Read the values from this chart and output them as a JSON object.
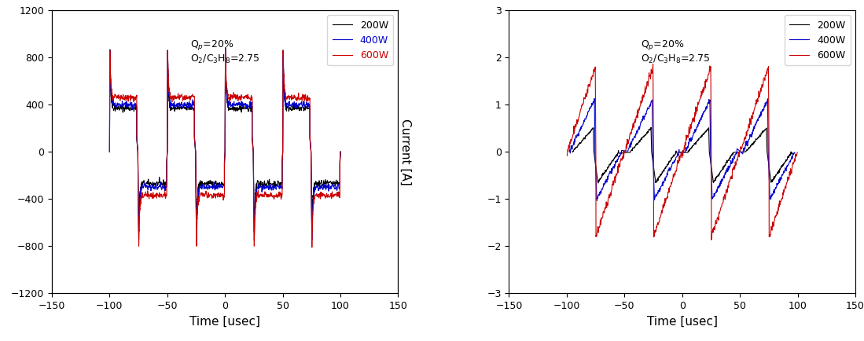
{
  "fig_width": 10.99,
  "fig_height": 4.34,
  "dpi": 100,
  "xlim": [
    -150,
    150
  ],
  "ylim_left": [
    -1200,
    1200
  ],
  "ylim_right": [
    -3,
    3
  ],
  "yticks_left": [
    -1200,
    -800,
    -400,
    0,
    400,
    800,
    1200
  ],
  "yticks_right": [
    -3,
    -2,
    -1,
    0,
    1,
    2,
    3
  ],
  "xticks": [
    -150,
    -100,
    -50,
    0,
    50,
    100,
    150
  ],
  "xlabel": "Time [usec]",
  "ylabel_left": "Current [A]",
  "annotation_line1": "Q$_p$=20%",
  "annotation_line2": "O$_2$/C$_3$H$_8$=2.75",
  "colors": [
    "#000000",
    "#0000cc",
    "#cc0000"
  ],
  "legend_labels": [
    "200W",
    "400W",
    "600W"
  ],
  "period": 50,
  "phase_centers": [
    -75,
    -25,
    25,
    75
  ],
  "background_color": "#ffffff"
}
